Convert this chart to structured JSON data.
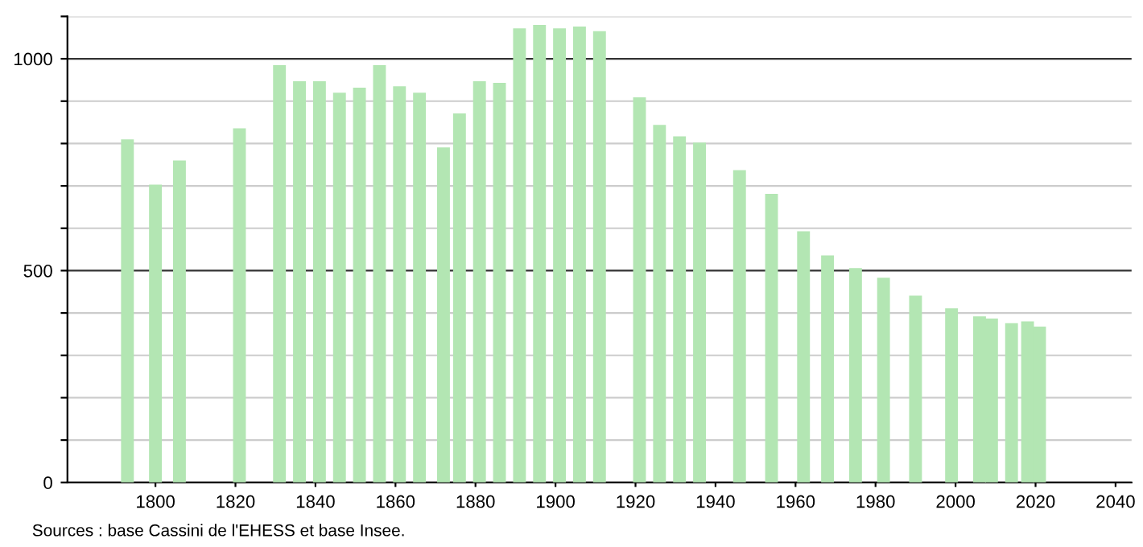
{
  "chart_data": {
    "type": "bar",
    "x": [
      1793,
      1800,
      1806,
      1821,
      1831,
      1836,
      1841,
      1846,
      1851,
      1856,
      1861,
      1866,
      1872,
      1876,
      1881,
      1886,
      1891,
      1896,
      1901,
      1906,
      1911,
      1921,
      1926,
      1931,
      1936,
      1946,
      1954,
      1962,
      1968,
      1975,
      1982,
      1990,
      1999,
      2006,
      2009,
      2014,
      2018,
      2021
    ],
    "values": [
      810,
      703,
      760,
      836,
      985,
      947,
      947,
      920,
      932,
      985,
      935,
      920,
      791,
      871,
      947,
      943,
      1072,
      1080,
      1072,
      1076,
      1065,
      909,
      844,
      817,
      802,
      737,
      681,
      593,
      536,
      506,
      483,
      441,
      411,
      392,
      387,
      376,
      380,
      368
    ],
    "color": "#b3e6b3",
    "xlim": [
      1778,
      2044
    ],
    "xticks": [
      1800,
      1820,
      1840,
      1860,
      1880,
      1900,
      1920,
      1940,
      1960,
      1980,
      2000,
      2020,
      2040
    ],
    "ylim": [
      0,
      1100
    ],
    "yticks": [
      0,
      {
        "value": 100,
        "label": null
      },
      {
        "value": 200,
        "label": null
      },
      {
        "value": 300,
        "label": null
      },
      {
        "value": 400,
        "label": null
      },
      500,
      {
        "value": 600,
        "label": null
      },
      {
        "value": 700,
        "label": null
      },
      {
        "value": 800,
        "label": null
      },
      {
        "value": 900,
        "label": null
      },
      1000,
      {
        "value": 1100,
        "label": null
      }
    ],
    "grid": "y",
    "annotations": [
      "Sources : base Cassini de l'EHESS et base Insee."
    ]
  }
}
